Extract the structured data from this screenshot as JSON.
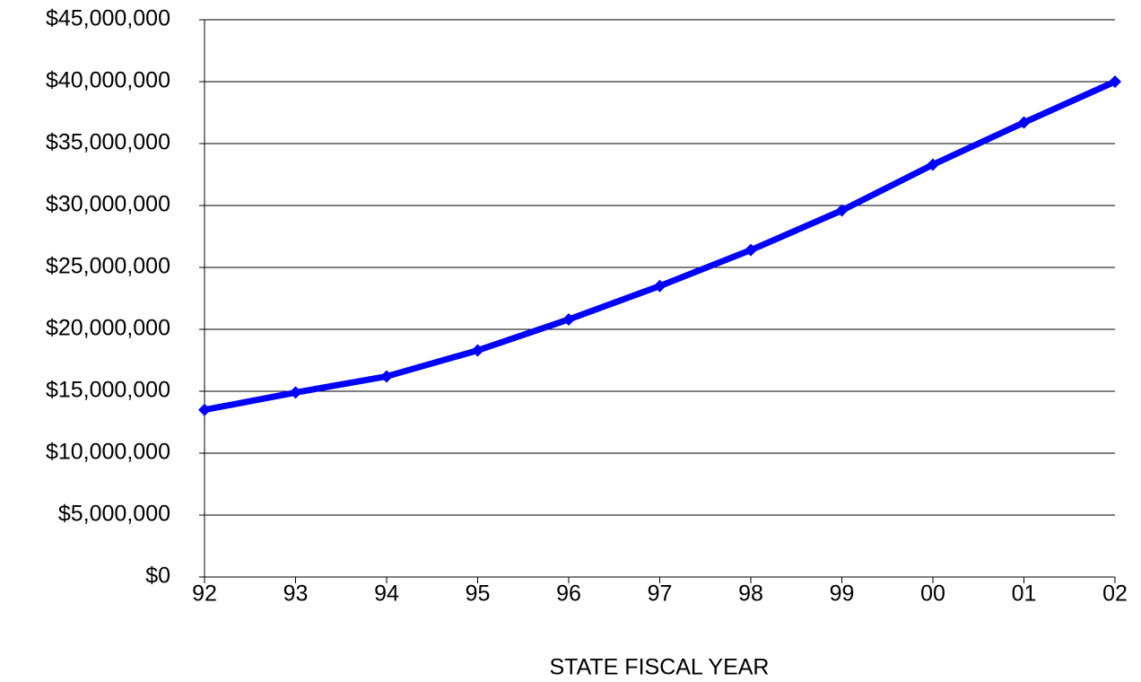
{
  "chart_data": {
    "type": "line",
    "xlabel": "STATE FISCAL YEAR",
    "categories": [
      "92",
      "93",
      "94",
      "95",
      "96",
      "97",
      "98",
      "99",
      "00",
      "01",
      "02"
    ],
    "values": [
      13500000,
      14900000,
      16200000,
      18300000,
      20800000,
      23500000,
      26400000,
      29600000,
      33300000,
      36700000,
      40000000
    ],
    "color": "#0000ff",
    "ylim": [
      0,
      45000000
    ],
    "yticks": [
      {
        "value": 0,
        "label": "$0"
      },
      {
        "value": 5000000,
        "label": "$5,000,000"
      },
      {
        "value": 10000000,
        "label": "$10,000,000"
      },
      {
        "value": 15000000,
        "label": "$15,000,000"
      },
      {
        "value": 20000000,
        "label": "$20,000,000"
      },
      {
        "value": 25000000,
        "label": "$25,000,000"
      },
      {
        "value": 30000000,
        "label": "$30,000,000"
      },
      {
        "value": 35000000,
        "label": "$35,000,000"
      },
      {
        "value": 40000000,
        "label": "$40,000,000"
      },
      {
        "value": 45000000,
        "label": "$45,000,000"
      }
    ],
    "grid": true
  }
}
